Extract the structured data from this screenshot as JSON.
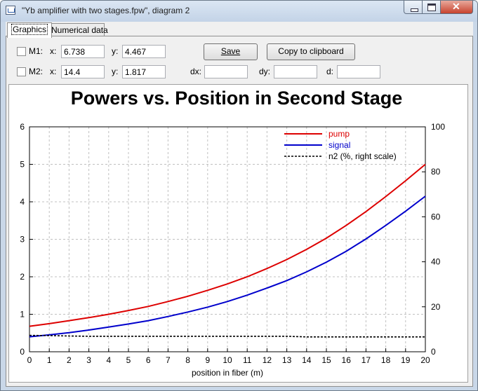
{
  "window": {
    "title": "\"Yb amplifier with two stages.fpw\", diagram 2"
  },
  "tabs": [
    {
      "label": "Graphics",
      "active": true
    },
    {
      "label": "Numerical data",
      "active": false
    }
  ],
  "markers": {
    "m1": {
      "label": "M1:",
      "checked": false,
      "x_label": "x:",
      "x_value": "6.738",
      "y_label": "y:",
      "y_value": "4.467"
    },
    "m2": {
      "label": "M2:",
      "checked": false,
      "x_label": "x:",
      "x_value": "14.4",
      "y_label": "y:",
      "y_value": "1.817"
    }
  },
  "buttons": {
    "save": "Save",
    "copy": "Copy to clipboard"
  },
  "diffs": {
    "dx_label": "dx:",
    "dx_value": "",
    "dy_label": "dy:",
    "dy_value": "",
    "d_label": "d:",
    "d_value": ""
  },
  "colors": {
    "pump": "#dd0000",
    "signal": "#0000cc",
    "n2": "#000000",
    "grid": "#c0c0c0"
  },
  "chart_data": {
    "type": "line",
    "title": "Powers vs. Position in Second Stage",
    "xlabel": "position in fiber (m)",
    "ylabel": "",
    "xlim": [
      0,
      20
    ],
    "ylim": [
      0,
      6
    ],
    "y2lim": [
      0,
      100
    ],
    "x_ticks": [
      0,
      1,
      2,
      3,
      4,
      5,
      6,
      7,
      8,
      9,
      10,
      11,
      12,
      13,
      14,
      15,
      16,
      17,
      18,
      19,
      20
    ],
    "y_ticks": [
      0,
      1,
      2,
      3,
      4,
      5,
      6
    ],
    "y2_ticks": [
      0,
      20,
      40,
      60,
      80,
      100
    ],
    "grid": true,
    "legend_position": "top-right",
    "x": [
      0,
      1,
      2,
      3,
      4,
      5,
      6,
      7,
      8,
      9,
      10,
      11,
      12,
      13,
      14,
      15,
      16,
      17,
      18,
      19,
      20
    ],
    "series": [
      {
        "name": "pump",
        "axis": "left",
        "style": "solid",
        "values": [
          0.68,
          0.75,
          0.83,
          0.91,
          1.0,
          1.1,
          1.21,
          1.34,
          1.48,
          1.64,
          1.81,
          2.0,
          2.22,
          2.46,
          2.73,
          3.03,
          3.37,
          3.74,
          4.14,
          4.56,
          5.0
        ]
      },
      {
        "name": "signal",
        "axis": "left",
        "style": "solid",
        "values": [
          0.4,
          0.45,
          0.51,
          0.58,
          0.66,
          0.74,
          0.83,
          0.94,
          1.06,
          1.19,
          1.34,
          1.51,
          1.7,
          1.9,
          2.13,
          2.39,
          2.68,
          3.01,
          3.37,
          3.75,
          4.15
        ]
      },
      {
        "name": "n2 (%, right scale)",
        "axis": "right",
        "style": "dashed",
        "values": [
          7.3,
          7.2,
          7.0,
          6.9,
          6.9,
          6.9,
          6.9,
          6.9,
          6.9,
          6.9,
          6.9,
          6.9,
          6.9,
          6.9,
          6.6,
          6.6,
          6.6,
          6.6,
          6.6,
          6.6,
          6.6
        ]
      }
    ]
  }
}
